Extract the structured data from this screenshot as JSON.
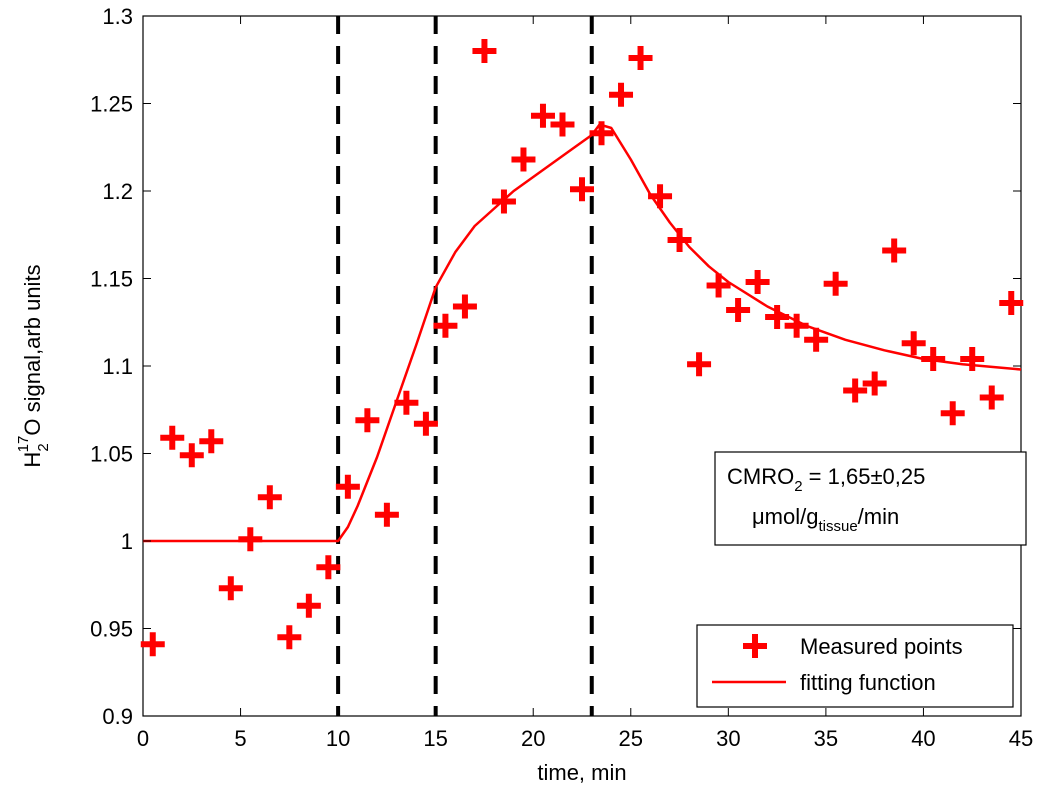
{
  "chart_data": {
    "type": "scatter",
    "title": "",
    "xlabel": "time, min",
    "ylabel": {
      "base1": "H",
      "sub1": "2",
      "sup1": "17",
      "base2": "O signal,arb units"
    },
    "xlim": [
      0,
      45
    ],
    "ylim": [
      0.9,
      1.3
    ],
    "xticks": [
      "0",
      "5",
      "10",
      "15",
      "20",
      "25",
      "30",
      "35",
      "40",
      "45"
    ],
    "yticks": [
      "0.9",
      "0.95",
      "1",
      "1.05",
      "1.1",
      "1.15",
      "1.2",
      "1.25",
      "1.3"
    ],
    "grid": false,
    "vlines": [
      10,
      15,
      23
    ],
    "series": [
      {
        "name": "Measured points",
        "kind": "scatter",
        "marker": "plus",
        "color": "#ff0000",
        "x": [
          0.5,
          1.5,
          2.5,
          3.5,
          4.5,
          5.5,
          6.5,
          7.5,
          8.5,
          9.5,
          10.5,
          11.5,
          12.5,
          13.5,
          14.5,
          15.5,
          16.5,
          17.5,
          18.5,
          19.5,
          20.5,
          21.5,
          22.5,
          23.5,
          24.5,
          25.5,
          26.5,
          27.5,
          28.5,
          29.5,
          30.5,
          31.5,
          32.5,
          33.5,
          34.5,
          35.5,
          36.5,
          37.5,
          38.5,
          39.5,
          40.5,
          41.5,
          42.5,
          43.5,
          44.5
        ],
        "y": [
          0.941,
          1.059,
          1.049,
          1.057,
          0.973,
          1.001,
          1.025,
          0.945,
          0.963,
          0.985,
          1.031,
          1.069,
          1.015,
          1.079,
          1.067,
          1.123,
          1.134,
          1.28,
          1.194,
          1.218,
          1.243,
          1.238,
          1.201,
          1.233,
          1.255,
          1.276,
          1.197,
          1.172,
          1.101,
          1.146,
          1.132,
          1.148,
          1.128,
          1.123,
          1.115,
          1.147,
          1.086,
          1.09,
          1.166,
          1.113,
          1.104,
          1.073,
          1.104,
          1.082,
          1.136
        ]
      },
      {
        "name": "fitting function",
        "kind": "line",
        "color": "#ff0000",
        "x": [
          0,
          10,
          10.5,
          11,
          12,
          13,
          14,
          15,
          16,
          17,
          18,
          19,
          20,
          21,
          22,
          23,
          23.4,
          24,
          25,
          26,
          27,
          28,
          29,
          30,
          32,
          34,
          36,
          38,
          40,
          42,
          44,
          45
        ],
        "y": [
          1.0,
          1.0,
          1.008,
          1.02,
          1.048,
          1.08,
          1.112,
          1.145,
          1.165,
          1.18,
          1.19,
          1.2,
          1.208,
          1.216,
          1.224,
          1.232,
          1.238,
          1.236,
          1.218,
          1.198,
          1.182,
          1.168,
          1.157,
          1.148,
          1.134,
          1.123,
          1.115,
          1.109,
          1.104,
          1.101,
          1.099,
          1.098
        ]
      }
    ],
    "legend": {
      "position": "bottom-right",
      "entries": [
        "Measured points",
        "fitting function"
      ]
    },
    "annotation": {
      "line1_base": "CMRO",
      "line1_sub": "2",
      "line1_rest": " = 1,65±0,25",
      "line2_base": "μmol/g",
      "line2_sub": "tissue",
      "line2_rest": "/min"
    }
  }
}
